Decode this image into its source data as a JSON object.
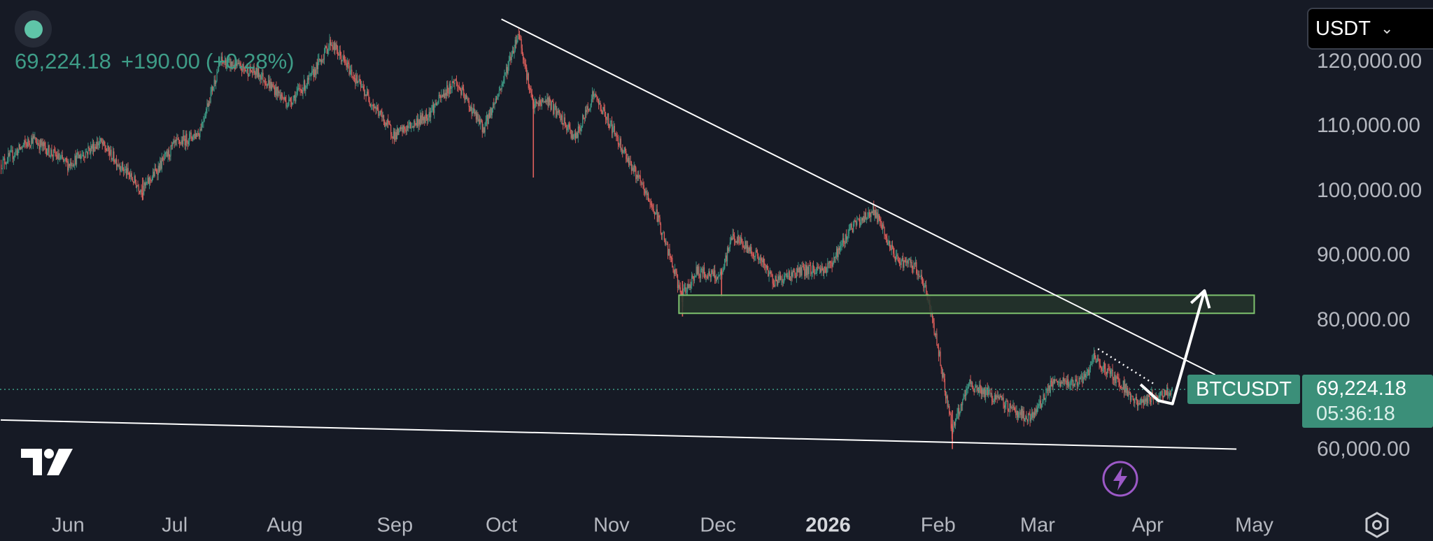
{
  "header": {
    "price": "69,224.18",
    "change": "+190.00",
    "change_pct": "(+0.28%)"
  },
  "currency_select": {
    "value": "USDT",
    "icon": "chevron-down-icon"
  },
  "symbol_tag": "BTCUSDT",
  "price_tag": {
    "price": "69,224.18",
    "countdown": "05:36:18"
  },
  "icons": {
    "status": "status-dot-icon",
    "logo": "tradingview-logo",
    "lightning": "lightning-bolt-icon",
    "settings": "settings-gear-icon"
  },
  "colors": {
    "background": "#161a25",
    "up": "#3e9c87",
    "down": "#e0605c",
    "zone_border": "#7ec26e",
    "zone_fill": "#24352b",
    "lines": "#ffffff",
    "tag": "#3b8f79",
    "lightning": "#9c59c7"
  },
  "chart_data": {
    "type": "candlestick",
    "symbol": "BTCUSDT",
    "y_axis": {
      "ticks": [
        {
          "value": 120000,
          "label": "120,000.00"
        },
        {
          "value": 110000,
          "label": "110,000.00"
        },
        {
          "value": 100000,
          "label": "100,000.00"
        },
        {
          "value": 90000,
          "label": "90,000.00"
        },
        {
          "value": 80000,
          "label": "80,000.00"
        },
        {
          "value": 60000,
          "label": "60,000.00"
        }
      ]
    },
    "x_axis": {
      "ticks": [
        {
          "date": "2025-06-01",
          "label": "Jun",
          "bold": false
        },
        {
          "date": "2025-07-01",
          "label": "Jul",
          "bold": false
        },
        {
          "date": "2025-08-01",
          "label": "Aug",
          "bold": false
        },
        {
          "date": "2025-09-01",
          "label": "Sep",
          "bold": false
        },
        {
          "date": "2025-10-01",
          "label": "Oct",
          "bold": false
        },
        {
          "date": "2025-11-01",
          "label": "Nov",
          "bold": false
        },
        {
          "date": "2025-12-01",
          "label": "Dec",
          "bold": false
        },
        {
          "date": "2026-01-01",
          "label": "2026",
          "bold": true
        },
        {
          "date": "2026-02-01",
          "label": "Feb",
          "bold": false
        },
        {
          "date": "2026-03-01",
          "label": "Mar",
          "bold": false
        },
        {
          "date": "2026-04-01",
          "label": "Apr",
          "bold": false
        },
        {
          "date": "2026-05-01",
          "label": "May",
          "bold": false
        }
      ]
    },
    "price_path": [
      [
        "2025-05-13",
        104000
      ],
      [
        "2025-05-22",
        108000
      ],
      [
        "2025-06-01",
        104000
      ],
      [
        "2025-06-10",
        107500
      ],
      [
        "2025-06-22",
        100000
      ],
      [
        "2025-07-01",
        107000
      ],
      [
        "2025-07-08",
        109000
      ],
      [
        "2025-07-14",
        120000
      ],
      [
        "2025-07-25",
        118000
      ],
      [
        "2025-08-02",
        113500
      ],
      [
        "2025-08-08",
        117000
      ],
      [
        "2025-08-14",
        123000
      ],
      [
        "2025-08-22",
        116500
      ],
      [
        "2025-09-01",
        108500
      ],
      [
        "2025-09-10",
        111500
      ],
      [
        "2025-09-18",
        117000
      ],
      [
        "2025-09-26",
        109500
      ],
      [
        "2025-10-01",
        116000
      ],
      [
        "2025-10-06",
        124500
      ],
      [
        "2025-10-10",
        113000
      ],
      [
        "2025-10-14",
        114000
      ],
      [
        "2025-10-22",
        108000
      ],
      [
        "2025-10-27",
        115000
      ],
      [
        "2025-11-01",
        110000
      ],
      [
        "2025-11-08",
        102500
      ],
      [
        "2025-11-14",
        96000
      ],
      [
        "2025-11-21",
        83500
      ],
      [
        "2025-11-25",
        87500
      ],
      [
        "2025-12-02",
        86500
      ],
      [
        "2025-12-05",
        93000
      ],
      [
        "2025-12-12",
        90000
      ],
      [
        "2025-12-17",
        86000
      ],
      [
        "2025-12-24",
        87500
      ],
      [
        "2026-01-01",
        88000
      ],
      [
        "2026-01-05",
        91500
      ],
      [
        "2026-01-07",
        94000
      ],
      [
        "2026-01-14",
        97000
      ],
      [
        "2026-01-20",
        89500
      ],
      [
        "2026-01-26",
        88000
      ],
      [
        "2026-01-29",
        84000
      ],
      [
        "2026-02-01",
        76000
      ],
      [
        "2026-02-05",
        63000
      ],
      [
        "2026-02-10",
        70000
      ],
      [
        "2026-02-17",
        68000
      ],
      [
        "2026-02-27",
        64500
      ],
      [
        "2026-03-05",
        70000
      ],
      [
        "2026-03-14",
        70500
      ],
      [
        "2026-03-17",
        74000
      ],
      [
        "2026-03-25",
        70000
      ],
      [
        "2026-03-29",
        67000
      ],
      [
        "2026-04-05",
        68500
      ],
      [
        "2026-04-08",
        69224
      ]
    ],
    "wicks": [
      {
        "date": "2025-10-10",
        "low": 102000,
        "high": 114000
      },
      {
        "date": "2025-06-22",
        "low": 98500,
        "high": 102000
      },
      {
        "date": "2025-11-21",
        "low": 80500,
        "high": 86000
      },
      {
        "date": "2025-12-02",
        "low": 83500,
        "high": 88000
      },
      {
        "date": "2026-02-05",
        "low": 60000,
        "high": 66000
      }
    ],
    "current_price": 69224.18,
    "annotations": {
      "resistance_trendline": [
        [
          "2025-10-01",
          126500
        ],
        [
          "2026-04-20",
          71500
        ]
      ],
      "support_trendline": [
        [
          "2025-05-13",
          64500
        ],
        [
          "2026-04-26",
          60000
        ]
      ],
      "support_zone": {
        "start": "2025-11-20",
        "end": "2026-05-01",
        "low": 81000,
        "high": 83800
      },
      "dotted_trendline": [
        [
          "2026-03-18",
          75500
        ],
        [
          "2026-04-03",
          70000
        ]
      ],
      "projection_arrow": [
        [
          "2026-03-30",
          70000
        ],
        [
          "2026-04-04",
          67500
        ],
        [
          "2026-04-08",
          67000
        ],
        [
          "2026-04-17",
          84500
        ]
      ]
    }
  }
}
